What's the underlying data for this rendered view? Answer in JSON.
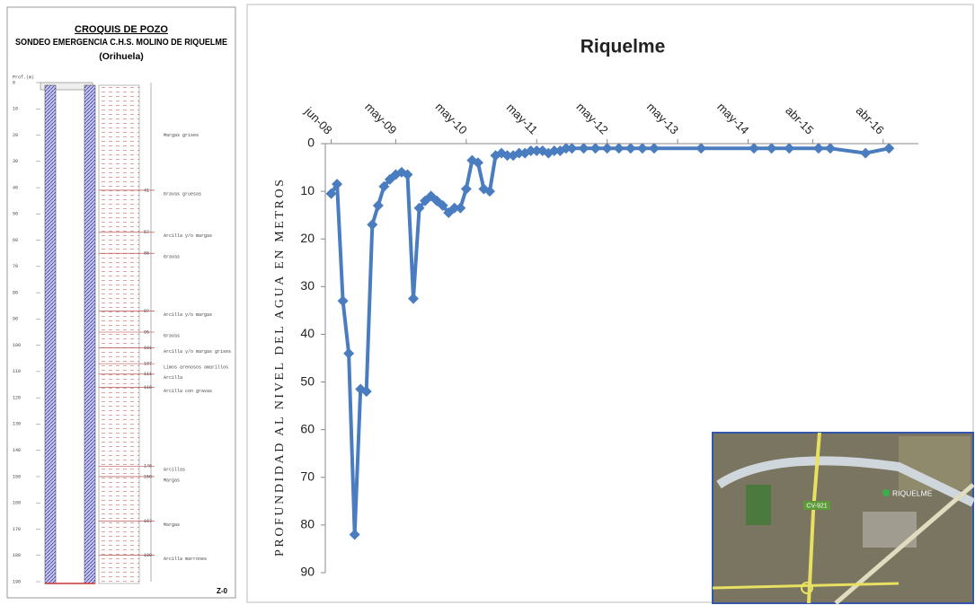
{
  "well_sketch": {
    "title": "CROQUIS DE POZO",
    "subtitle": "SONDEO EMERGENCIA C.H.S. MOLINO DE RIQUELME",
    "location": "(Orihuela)",
    "depth_header": "Prof.(m)",
    "depth_scale": [
      0,
      10,
      20,
      30,
      40,
      50,
      60,
      70,
      80,
      90,
      100,
      110,
      120,
      130,
      140,
      150,
      160,
      170,
      180,
      190
    ],
    "top_layer": "Margas grises",
    "layers": [
      {
        "depth": 41,
        "label": "Gravas gruesas"
      },
      {
        "depth": 57,
        "label": "Arcilla y/o margas"
      },
      {
        "depth": 65,
        "label": "Gravas"
      },
      {
        "depth": 87,
        "label": "Arcilla y/o margas"
      },
      {
        "depth": 95,
        "label": "Gravas"
      },
      {
        "depth": 101,
        "label": "Arcilla y/o margas grises"
      },
      {
        "depth": 107,
        "label": "Limos arenosos amarillos"
      },
      {
        "depth": 111,
        "label": "Arcilla"
      },
      {
        "depth": 116,
        "label": "Arcilla con gravas"
      },
      {
        "depth": 146,
        "label": "Arcillas"
      },
      {
        "depth": 150,
        "label": "Margas"
      },
      {
        "depth": 167,
        "label": "Margas"
      },
      {
        "depth": 180,
        "label": "Arcilla marrones"
      }
    ],
    "footer": "Z-0"
  },
  "map": {
    "road": "CV-921",
    "marker": "RIQUELME"
  },
  "chart_data": {
    "type": "line",
    "title": "Riquelme",
    "y_label": "PROFUNDIDAD AL NIVEL DEL AGUA EN METROS",
    "color": "#4a7cc0",
    "y_inverted": true,
    "x": [
      "2008-06",
      "2008-07",
      "2008-08",
      "2008-09",
      "2008-10",
      "2008-11",
      "2008-12",
      "2009-01",
      "2009-02",
      "2009-03",
      "2009-04",
      "2009-05",
      "2009-06",
      "2009-07",
      "2009-08",
      "2009-09",
      "2009-10",
      "2009-11",
      "2009-12",
      "2010-01",
      "2010-02",
      "2010-03",
      "2010-04",
      "2010-05",
      "2010-06",
      "2010-07",
      "2010-08",
      "2010-09",
      "2010-10",
      "2010-11",
      "2010-12",
      "2011-01",
      "2011-02",
      "2011-03",
      "2011-04",
      "2011-05",
      "2011-06",
      "2011-07",
      "2011-08",
      "2011-09",
      "2011-10",
      "2011-11",
      "2012-01",
      "2012-03",
      "2012-05",
      "2012-07",
      "2012-09",
      "2012-11",
      "2013-01",
      "2013-09",
      "2014-06",
      "2014-09",
      "2014-12",
      "2015-05",
      "2015-07",
      "2016-01",
      "2016-05"
    ],
    "values": [
      10.5,
      8.5,
      33,
      44,
      82,
      51.5,
      52,
      17,
      13,
      9,
      7.5,
      6.5,
      6,
      6.5,
      32.5,
      13.5,
      12,
      11,
      12,
      13,
      14.5,
      13.5,
      13.5,
      9.5,
      3.5,
      4,
      9.5,
      10,
      2.5,
      2,
      2.5,
      2.5,
      2,
      2,
      1.5,
      1.5,
      1.5,
      2,
      1.5,
      1.5,
      1,
      1,
      1,
      1,
      1,
      1,
      1,
      1,
      1,
      1,
      1,
      1,
      1,
      1,
      1,
      2,
      1
    ],
    "xlim": [
      "2008-05",
      "2016-10"
    ],
    "xticks": [
      {
        "value": "2008-06",
        "label": "jun-08"
      },
      {
        "value": "2009-05",
        "label": "may-09"
      },
      {
        "value": "2010-05",
        "label": "may-10"
      },
      {
        "value": "2011-05",
        "label": "may-11"
      },
      {
        "value": "2012-05",
        "label": "may-12"
      },
      {
        "value": "2013-05",
        "label": "may-13"
      },
      {
        "value": "2014-05",
        "label": "may-14"
      },
      {
        "value": "2015-04",
        "label": "abr-15"
      },
      {
        "value": "2016-04",
        "label": "abr-16"
      }
    ],
    "ylim": [
      0,
      90
    ],
    "yticks": [
      0,
      10,
      20,
      30,
      40,
      50,
      60,
      70,
      80,
      90
    ]
  }
}
